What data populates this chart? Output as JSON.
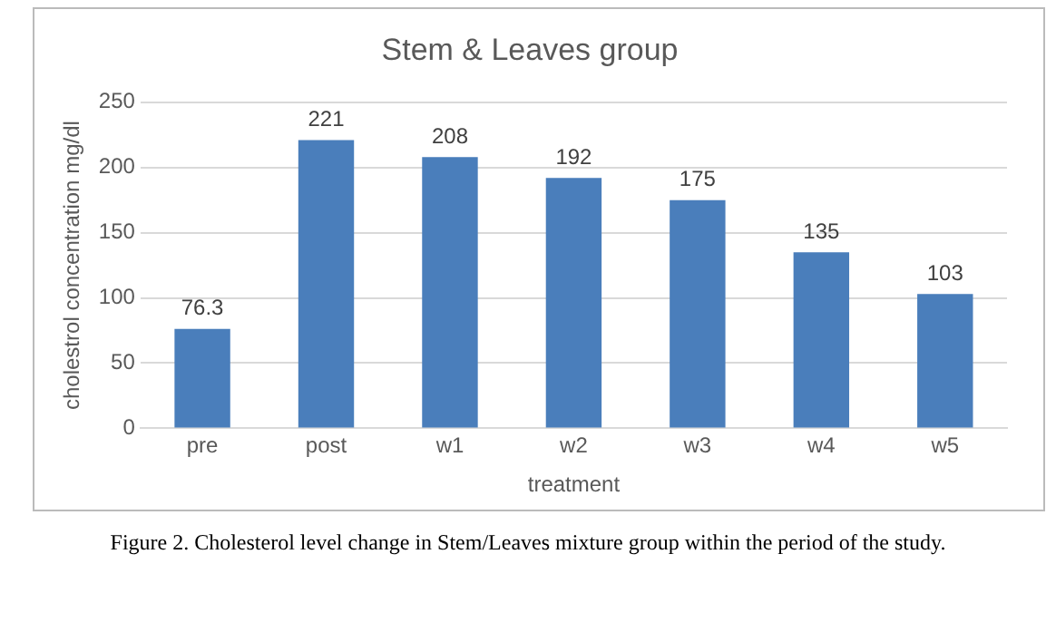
{
  "chart_data": {
    "type": "bar",
    "title": "Stem & Leaves group",
    "xlabel": "treatment",
    "ylabel": "cholestrol concentration mg/dl",
    "categories": [
      "pre",
      "post",
      "w1",
      "w2",
      "w3",
      "w4",
      "w5"
    ],
    "values": [
      76.3,
      221,
      208,
      192,
      175,
      135,
      103
    ],
    "color": "#4a7ebb",
    "ylim": [
      0,
      250
    ],
    "yticks": [
      0,
      50,
      100,
      150,
      200,
      250
    ],
    "grid": "y",
    "data_labels": true,
    "annotations": [
      "Figure 2. Cholesterol level change in Stem/Leaves mixture group within the period of the study."
    ]
  }
}
